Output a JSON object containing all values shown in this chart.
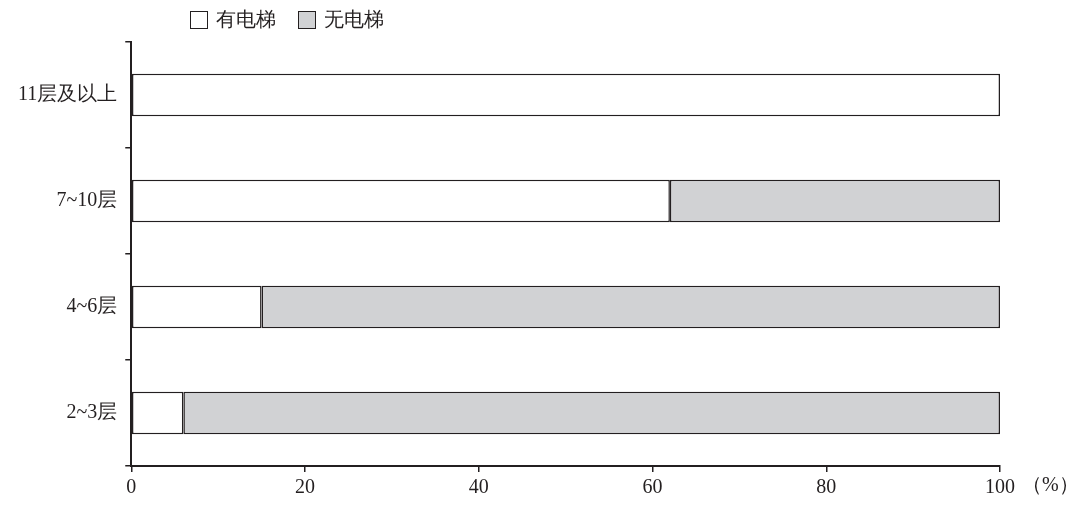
{
  "chart_data": {
    "type": "bar",
    "orientation": "horizontal",
    "stacked": true,
    "xlabel": "（%）",
    "categories": [
      "11层及以上",
      "7~10层",
      "4~6层",
      "2~3层"
    ],
    "series": [
      {
        "name": "有电梯",
        "color": "#ffffff",
        "values": [
          100,
          62,
          15,
          6
        ]
      },
      {
        "name": "无电梯",
        "color": "#d1d2d4",
        "values": [
          0,
          38,
          85,
          94
        ]
      }
    ],
    "xlim": [
      0,
      100
    ],
    "xticks": [
      0,
      20,
      40,
      60,
      80,
      100
    ],
    "grid": false,
    "legend": "top"
  }
}
